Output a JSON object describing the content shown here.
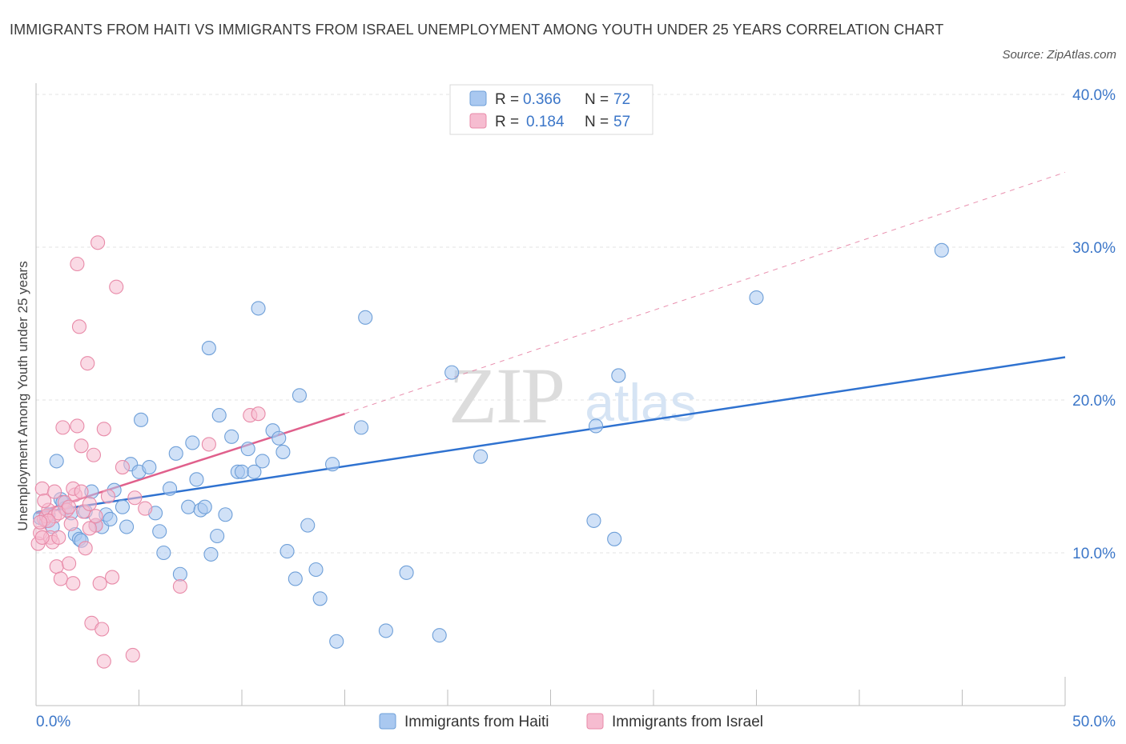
{
  "title": "IMMIGRANTS FROM HAITI VS IMMIGRANTS FROM ISRAEL UNEMPLOYMENT AMONG YOUTH UNDER 25 YEARS CORRELATION CHART",
  "source": "Source: ZipAtlas.com",
  "watermark": {
    "zip": "ZIP",
    "atlas": "atlas"
  },
  "colors": {
    "haiti_fill": "#a9c8f0",
    "haiti_stroke": "#6e9fd8",
    "haiti_line": "#2f72d0",
    "israel_fill": "#f6bcd0",
    "israel_stroke": "#e88aa8",
    "israel_line": "#e0608c",
    "tick_text": "#3b76c8",
    "grid": "#e3e3e3"
  },
  "legend": {
    "rows": [
      {
        "r_label": "R =",
        "r_value": "0.366",
        "n_label": "N =",
        "n_value": "72"
      },
      {
        "r_label": "R =",
        "r_value": "0.184",
        "n_label": "N =",
        "n_value": "57"
      }
    ]
  },
  "chart_data": {
    "type": "scatter",
    "xlabel": "",
    "ylabel": "Unemployment Among Youth under 25 years",
    "xlim": [
      0,
      50
    ],
    "ylim": [
      0,
      40
    ],
    "x_tick_labels": [
      "0.0%",
      "50.0%"
    ],
    "y_ticks": [
      10,
      20,
      30,
      40
    ],
    "y_tick_labels": [
      "10.0%",
      "20.0%",
      "30.0%",
      "40.0%"
    ],
    "grid": true,
    "legend_position": "bottom-center",
    "series": [
      {
        "name": "Immigrants from Haiti",
        "R": 0.366,
        "N": 72,
        "trend": {
          "x": [
            0,
            50
          ],
          "y": [
            12.6,
            22.8
          ],
          "dashed_extension": false
        },
        "points": [
          [
            0.2,
            12.3
          ],
          [
            0.5,
            12.1
          ],
          [
            0.8,
            11.7
          ],
          [
            1.0,
            16.0
          ],
          [
            1.2,
            13.5
          ],
          [
            1.4,
            12.9
          ],
          [
            1.7,
            12.6
          ],
          [
            1.9,
            11.2
          ],
          [
            2.1,
            10.9
          ],
          [
            2.4,
            12.7
          ],
          [
            2.7,
            14.0
          ],
          [
            2.9,
            11.8
          ],
          [
            3.2,
            11.7
          ],
          [
            3.4,
            12.5
          ],
          [
            3.8,
            14.1
          ],
          [
            4.2,
            13.0
          ],
          [
            4.4,
            11.7
          ],
          [
            4.6,
            15.8
          ],
          [
            5.0,
            15.3
          ],
          [
            5.1,
            18.7
          ],
          [
            5.5,
            15.6
          ],
          [
            5.8,
            12.6
          ],
          [
            6.0,
            11.4
          ],
          [
            6.2,
            10.0
          ],
          [
            6.5,
            14.2
          ],
          [
            6.8,
            16.5
          ],
          [
            7.0,
            8.6
          ],
          [
            7.4,
            13.0
          ],
          [
            7.6,
            17.2
          ],
          [
            7.8,
            14.8
          ],
          [
            8.0,
            12.8
          ],
          [
            8.2,
            13.0
          ],
          [
            8.4,
            23.4
          ],
          [
            8.5,
            9.9
          ],
          [
            8.8,
            11.1
          ],
          [
            8.9,
            19.0
          ],
          [
            9.2,
            12.5
          ],
          [
            9.5,
            17.6
          ],
          [
            9.8,
            15.3
          ],
          [
            10.0,
            15.3
          ],
          [
            10.3,
            16.8
          ],
          [
            10.6,
            15.3
          ],
          [
            10.8,
            26.0
          ],
          [
            11.0,
            16.0
          ],
          [
            11.5,
            18.0
          ],
          [
            11.8,
            17.5
          ],
          [
            12.0,
            16.6
          ],
          [
            12.2,
            10.1
          ],
          [
            12.6,
            8.3
          ],
          [
            12.8,
            20.3
          ],
          [
            13.2,
            11.8
          ],
          [
            13.6,
            8.9
          ],
          [
            13.8,
            7.0
          ],
          [
            14.6,
            4.2
          ],
          [
            14.4,
            15.8
          ],
          [
            15.8,
            18.2
          ],
          [
            16.0,
            25.4
          ],
          [
            17.0,
            4.9
          ],
          [
            18.0,
            8.7
          ],
          [
            19.6,
            4.6
          ],
          [
            20.2,
            21.8
          ],
          [
            21.6,
            16.3
          ],
          [
            27.1,
            12.1
          ],
          [
            27.2,
            18.3
          ],
          [
            28.1,
            10.9
          ],
          [
            28.3,
            21.6
          ],
          [
            35.0,
            26.7
          ],
          [
            44.0,
            29.8
          ],
          [
            1.3,
            13.3
          ],
          [
            3.6,
            12.2
          ],
          [
            2.2,
            10.8
          ],
          [
            0.6,
            12.5
          ]
        ]
      },
      {
        "name": "Immigrants from Israel",
        "R": 0.184,
        "N": 57,
        "trend": {
          "x": [
            0,
            15
          ],
          "y": [
            12.6,
            19.1
          ],
          "dashed_extension": {
            "x": [
              15,
              50
            ],
            "y": [
              19.1,
              34.9
            ]
          }
        },
        "points": [
          [
            0.1,
            10.6
          ],
          [
            0.2,
            11.3
          ],
          [
            0.3,
            14.2
          ],
          [
            0.4,
            12.2
          ],
          [
            0.5,
            12.4
          ],
          [
            0.6,
            12.8
          ],
          [
            0.7,
            11.0
          ],
          [
            0.8,
            10.7
          ],
          [
            0.9,
            12.4
          ],
          [
            1.0,
            9.1
          ],
          [
            1.1,
            11.0
          ],
          [
            1.2,
            8.3
          ],
          [
            1.3,
            18.2
          ],
          [
            1.4,
            13.3
          ],
          [
            1.5,
            12.8
          ],
          [
            1.6,
            9.3
          ],
          [
            1.7,
            11.9
          ],
          [
            1.8,
            8.0
          ],
          [
            1.9,
            13.8
          ],
          [
            2.0,
            28.9
          ],
          [
            2.1,
            24.8
          ],
          [
            2.2,
            17.0
          ],
          [
            2.3,
            12.7
          ],
          [
            2.4,
            10.3
          ],
          [
            2.5,
            22.4
          ],
          [
            2.6,
            13.2
          ],
          [
            2.7,
            5.4
          ],
          [
            2.8,
            16.4
          ],
          [
            2.9,
            11.8
          ],
          [
            3.0,
            30.3
          ],
          [
            3.1,
            8.0
          ],
          [
            3.2,
            5.0
          ],
          [
            3.3,
            2.9
          ],
          [
            3.7,
            8.4
          ],
          [
            3.9,
            27.4
          ],
          [
            4.2,
            15.6
          ],
          [
            4.7,
            3.3
          ],
          [
            5.3,
            12.9
          ],
          [
            7.0,
            7.8
          ],
          [
            8.4,
            17.1
          ],
          [
            10.4,
            19.0
          ],
          [
            10.8,
            19.1
          ],
          [
            2.0,
            18.3
          ],
          [
            3.3,
            18.1
          ],
          [
            0.4,
            13.4
          ],
          [
            1.8,
            14.2
          ],
          [
            2.2,
            14.0
          ],
          [
            0.9,
            14.0
          ],
          [
            0.3,
            11.0
          ],
          [
            1.1,
            12.6
          ],
          [
            2.6,
            11.6
          ],
          [
            3.5,
            13.7
          ],
          [
            0.6,
            12.1
          ],
          [
            1.6,
            13.0
          ],
          [
            0.2,
            12.0
          ],
          [
            2.9,
            12.4
          ],
          [
            4.8,
            13.6
          ]
        ]
      }
    ]
  }
}
